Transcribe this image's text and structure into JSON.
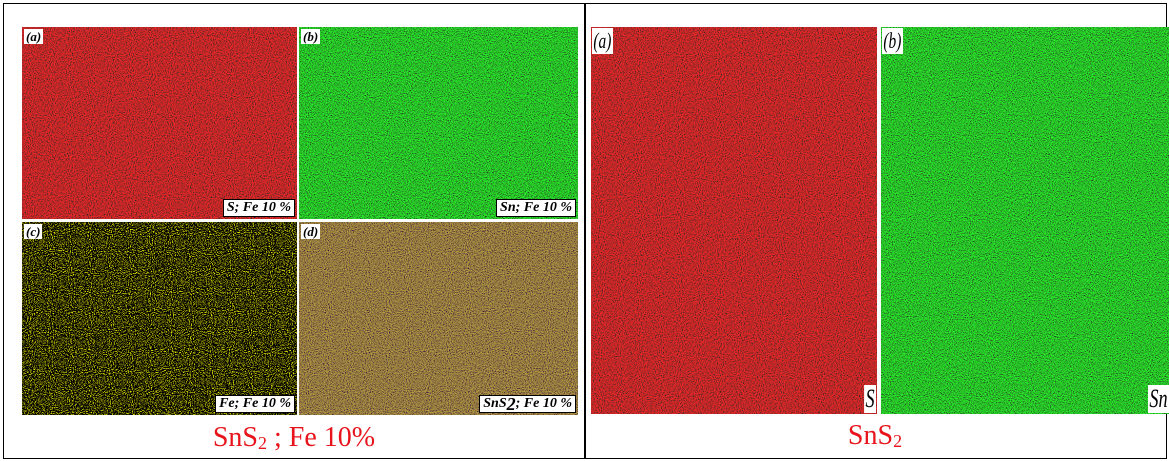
{
  "left": {
    "panels": [
      {
        "letter": "(a)",
        "label": "S; Fe 10 %"
      },
      {
        "letter": "(b)",
        "label": "Sn; Fe 10 %"
      },
      {
        "letter": "(c)",
        "label": "Fe; Fe 10 %"
      },
      {
        "letter": "(d)",
        "label": {
          "main": "SnS",
          "sub": "2",
          "rest": "; Fe 10 %"
        }
      }
    ],
    "caption": {
      "main": "SnS",
      "sub": "2",
      "rest": " ; Fe 10%"
    }
  },
  "right": {
    "panels": [
      {
        "letter": "(a)",
        "label": "S"
      },
      {
        "letter": "(b)",
        "label": "Sn"
      }
    ],
    "caption": {
      "main": "SnS",
      "sub": "2"
    }
  }
}
